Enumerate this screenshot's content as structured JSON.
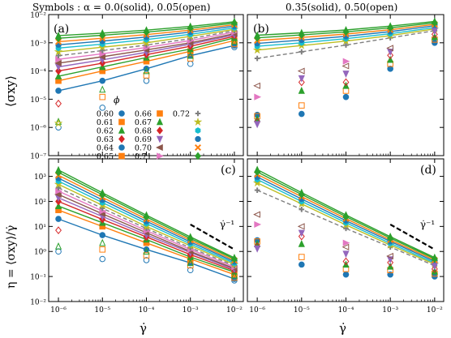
{
  "figure": {
    "header_left": "Symbols :  α = 0.0(solid), 0.05(open)",
    "header_right": "0.35(solid), 0.50(open)",
    "legend_title": "ϕ",
    "slope_label": "γ̇⁻¹"
  },
  "axes": {
    "x_ticks": [
      "10⁻⁶",
      "10⁻⁵",
      "10⁻⁴",
      "10⁻³",
      "10⁻²"
    ],
    "x_label": "γ̇",
    "top_ticks": [
      "10⁻²",
      "10⁻³",
      "10⁻⁴",
      "10⁻⁵",
      "10⁻⁶",
      "10⁻⁷"
    ],
    "top_ylabel": "⟨σxy⟩",
    "bottom_ticks": [
      "10³",
      "10²",
      "10¹",
      "10⁰",
      "10⁻¹",
      "10⁻²"
    ],
    "bottom_ylabel": "η = ⟨σxy⟩/γ̇"
  },
  "chart_data": [
    {
      "type": "line",
      "panel": "(a)",
      "x": [
        1e-06,
        1e-05,
        0.0001,
        0.001,
        0.01
      ],
      "xscale": "log",
      "yscale": "log",
      "xlim": [
        6e-07,
        0.016
      ],
      "ylim": [
        1e-07,
        0.01
      ],
      "ylabel": "⟨σxy⟩",
      "xlabel": "",
      "legend_title": "ϕ",
      "legend": [
        {
          "label": "0.60",
          "color": "#1f77b4",
          "marker": "circle"
        },
        {
          "label": "0.61",
          "color": "#ff7f0e",
          "marker": "square"
        },
        {
          "label": "0.62",
          "color": "#2ca02c",
          "marker": "triangle-up"
        },
        {
          "label": "0.63",
          "color": "#d62728",
          "marker": "diamond"
        },
        {
          "label": "0.64",
          "color": "#1f77b4",
          "marker": "circle"
        },
        {
          "label": "0.65",
          "color": "#ff7f0e",
          "marker": "square"
        },
        {
          "label": "0.66",
          "color": "#ff7f0e",
          "marker": "square"
        },
        {
          "label": "0.67",
          "color": "#2ca02c",
          "marker": "triangle-up"
        },
        {
          "label": "0.68",
          "color": "#d62728",
          "marker": "diamond"
        },
        {
          "label": "0.69",
          "color": "#9467bd",
          "marker": "triangle-down"
        },
        {
          "label": "0.70",
          "color": "#8c564b",
          "marker": "triangle-left"
        },
        {
          "label": "0.71",
          "color": "#e377c2",
          "marker": "triangle-right"
        },
        {
          "label": "0.72",
          "color": "#7f7f7f",
          "marker": "plus"
        },
        {
          "label": "",
          "color": "#bcbd22",
          "marker": "star"
        },
        {
          "label": "",
          "color": "#17becf",
          "marker": "hexagon"
        },
        {
          "label": "",
          "color": "#1f77b4",
          "marker": "octagon"
        },
        {
          "label": "",
          "color": "#ff7f0e",
          "marker": "x"
        },
        {
          "label": "",
          "color": "#2ca02c",
          "marker": "diamond"
        }
      ],
      "series": [
        {
          "color": "#1f77b4",
          "values": [
            2e-05,
            4.5e-05,
            0.00012,
            0.00035,
            0.0008
          ]
        },
        {
          "color": "#ff7f0e",
          "values": [
            4.5e-05,
            0.0001,
            0.00022,
            0.0005,
            0.0012
          ]
        },
        {
          "color": "#2ca02c",
          "values": [
            6.5e-05,
            0.00014,
            0.0003,
            0.0006,
            0.0015
          ]
        },
        {
          "color": "#d62728",
          "values": [
            0.0001,
            0.00019,
            0.00038,
            0.00075,
            0.0017
          ]
        },
        {
          "color": "#9467bd",
          "values": [
            0.00014,
            0.00025,
            0.00046,
            0.0009,
            0.0019
          ]
        },
        {
          "color": "#8c564b",
          "values": [
            0.00019,
            0.00032,
            0.00056,
            0.001,
            0.0021
          ]
        },
        {
          "color": "#e377c2",
          "values": [
            0.00026,
            0.00041,
            0.00068,
            0.0012,
            0.0024
          ]
        },
        {
          "color": "#7f7f7f",
          "values": [
            0.00035,
            0.00053,
            0.00083,
            0.0014,
            0.0027
          ],
          "dashed": true
        },
        {
          "color": "#bcbd22",
          "values": [
            0.00048,
            0.0007,
            0.001,
            0.0017,
            0.003
          ]
        },
        {
          "color": "#17becf",
          "values": [
            0.00065,
            0.0009,
            0.0013,
            0.002,
            0.0034
          ]
        },
        {
          "color": "#1f77b4",
          "values": [
            0.00085,
            0.00115,
            0.0016,
            0.0024,
            0.0039
          ]
        },
        {
          "color": "#ff7f0e",
          "values": [
            0.0011,
            0.00145,
            0.00195,
            0.0028,
            0.0044
          ]
        },
        {
          "color": "#2ca02c",
          "values": [
            0.00145,
            0.00185,
            0.0024,
            0.0033,
            0.005
          ]
        },
        {
          "color": "#2ca02c",
          "values": [
            0.0018,
            0.0022,
            0.0028,
            0.0038,
            0.0056
          ]
        }
      ],
      "open_markers": [
        {
          "color": "#1f77b4",
          "marker": "circle",
          "values": [
            1e-06,
            5e-06,
            4.5e-05,
            0.00018,
            0.0007
          ]
        },
        {
          "color": "#ff7f0e",
          "marker": "square",
          "values": [
            null,
            1.2e-05,
            7e-05,
            0.00028,
            0.0009
          ]
        },
        {
          "color": "#2ca02c",
          "marker": "triangle-up",
          "values": [
            1.6e-06,
            2.2e-05,
            0.0001,
            0.00035,
            0.0011
          ]
        },
        {
          "color": "#d62728",
          "marker": "diamond",
          "values": [
            7e-06,
            null,
            null,
            null,
            null
          ]
        },
        {
          "color": "#bcbd22",
          "marker": "star",
          "values": [
            1.4e-06,
            null,
            null,
            null,
            null
          ]
        }
      ]
    },
    {
      "type": "line",
      "panel": "(b)",
      "x": [
        1e-06,
        1e-05,
        0.0001,
        0.001,
        0.01
      ],
      "xscale": "log",
      "yscale": "log",
      "xlim": [
        6e-07,
        0.016
      ],
      "ylim": [
        1e-07,
        0.01
      ],
      "series": [
        {
          "color": "#7f7f7f",
          "values": [
            0.00028,
            0.00048,
            0.00083,
            0.0015,
            0.0027
          ],
          "dashed": true
        },
        {
          "color": "#bcbd22",
          "values": [
            0.00055,
            0.0008,
            0.00115,
            0.0018,
            0.0031
          ]
        },
        {
          "color": "#17becf",
          "values": [
            0.00075,
            0.001,
            0.0014,
            0.0021,
            0.0035
          ]
        },
        {
          "color": "#1f77b4",
          "values": [
            0.00095,
            0.00125,
            0.0017,
            0.0025,
            0.004
          ]
        },
        {
          "color": "#ff7f0e",
          "values": [
            0.0012,
            0.00155,
            0.00205,
            0.0029,
            0.0045
          ]
        },
        {
          "color": "#2ca02c",
          "values": [
            0.0015,
            0.0019,
            0.00245,
            0.0034,
            0.0051
          ]
        },
        {
          "color": "#2ca02c",
          "values": [
            0.00185,
            0.00225,
            0.00285,
            0.0039,
            0.0057
          ]
        }
      ],
      "scatter_columns": [
        {
          "x": 1e-06,
          "values": [
            2.8e-06,
            2.5e-06,
            2e-06,
            1.6e-06,
            1.3e-06,
            3e-05,
            1.2e-05
          ]
        },
        {
          "x": 1e-05,
          "values": [
            3e-06,
            6e-06,
            2e-05,
            4e-05,
            5.5e-05,
            0.0001
          ]
        },
        {
          "x": 0.0001,
          "values": [
            1.2e-05,
            2e-05,
            3e-05,
            4e-05,
            8e-05,
            0.00015,
            0.00022
          ]
        },
        {
          "x": 0.001,
          "values": [
            0.00012,
            0.00018,
            0.00025,
            0.00036,
            0.00048,
            0.00065
          ]
        },
        {
          "x": 0.01,
          "values": [
            0.001,
            0.0013,
            0.0016,
            0.002,
            0.0026
          ]
        }
      ]
    },
    {
      "type": "line",
      "panel": "(c)",
      "x": [
        1e-06,
        1e-05,
        0.0001,
        0.001,
        0.01
      ],
      "xscale": "log",
      "yscale": "log",
      "xlim": [
        6e-07,
        0.016
      ],
      "ylim": [
        0.01,
        5000.0
      ],
      "ylabel": "η = ⟨σxy⟩/γ̇",
      "xlabel": "γ̇",
      "reference_slope": {
        "label": "γ̇⁻¹",
        "exponent": -1,
        "x": [
          0.001,
          0.01
        ],
        "y": [
          12,
          1.2
        ]
      },
      "series": [
        {
          "color": "#1f77b4",
          "values": [
            20,
            4.5,
            1.2,
            0.35,
            0.08
          ]
        },
        {
          "color": "#ff7f0e",
          "values": [
            45,
            10,
            2.2,
            0.5,
            0.12
          ]
        },
        {
          "color": "#2ca02c",
          "values": [
            65,
            14,
            3.0,
            0.6,
            0.15
          ]
        },
        {
          "color": "#d62728",
          "values": [
            100,
            19,
            3.8,
            0.75,
            0.17
          ]
        },
        {
          "color": "#9467bd",
          "values": [
            140,
            25,
            4.6,
            0.9,
            0.19
          ]
        },
        {
          "color": "#8c564b",
          "values": [
            190,
            32,
            5.6,
            1.0,
            0.21
          ]
        },
        {
          "color": "#e377c2",
          "values": [
            260,
            41,
            6.8,
            1.2,
            0.24
          ]
        },
        {
          "color": "#7f7f7f",
          "values": [
            350,
            53,
            8.3,
            1.4,
            0.27
          ],
          "dashed": true
        },
        {
          "color": "#bcbd22",
          "values": [
            480,
            70,
            10,
            1.7,
            0.3
          ]
        },
        {
          "color": "#17becf",
          "values": [
            650,
            90,
            13,
            2.0,
            0.34
          ]
        },
        {
          "color": "#1f77b4",
          "values": [
            850,
            115,
            16,
            2.4,
            0.39
          ]
        },
        {
          "color": "#ff7f0e",
          "values": [
            1100,
            145,
            19.5,
            2.8,
            0.44
          ]
        },
        {
          "color": "#2ca02c",
          "values": [
            1450,
            185,
            24,
            3.3,
            0.5
          ]
        },
        {
          "color": "#2ca02c",
          "values": [
            1800,
            220,
            28,
            3.8,
            0.56
          ]
        }
      ],
      "open_markers": [
        {
          "color": "#1f77b4",
          "marker": "circle",
          "values": [
            1.0,
            0.5,
            0.45,
            0.18,
            0.07
          ]
        },
        {
          "color": "#ff7f0e",
          "marker": "square",
          "values": [
            null,
            1.2,
            0.7,
            0.28,
            0.09
          ]
        },
        {
          "color": "#2ca02c",
          "marker": "triangle-up",
          "values": [
            1.6,
            2.2,
            1.0,
            0.35,
            0.11
          ]
        },
        {
          "color": "#d62728",
          "marker": "diamond",
          "values": [
            7.0,
            null,
            null,
            null,
            null
          ]
        }
      ]
    },
    {
      "type": "line",
      "panel": "(d)",
      "x": [
        1e-06,
        1e-05,
        0.0001,
        0.001,
        0.01
      ],
      "xscale": "log",
      "yscale": "log",
      "xlim": [
        6e-07,
        0.016
      ],
      "ylim": [
        0.01,
        5000.0
      ],
      "xlabel": "γ̇",
      "reference_slope": {
        "label": "γ̇⁻¹",
        "exponent": -1,
        "x": [
          0.001,
          0.01
        ],
        "y": [
          12,
          1.2
        ]
      },
      "series": [
        {
          "color": "#7f7f7f",
          "values": [
            280,
            48,
            8.3,
            1.5,
            0.27
          ],
          "dashed": true
        },
        {
          "color": "#bcbd22",
          "values": [
            550,
            80,
            11.5,
            1.8,
            0.31
          ]
        },
        {
          "color": "#17becf",
          "values": [
            750,
            100,
            14,
            2.1,
            0.35
          ]
        },
        {
          "color": "#1f77b4",
          "values": [
            950,
            125,
            17,
            2.5,
            0.4
          ]
        },
        {
          "color": "#ff7f0e",
          "values": [
            1200,
            155,
            20.5,
            2.9,
            0.45
          ]
        },
        {
          "color": "#2ca02c",
          "values": [
            1500,
            190,
            24.5,
            3.4,
            0.51
          ]
        },
        {
          "color": "#2ca02c",
          "values": [
            1850,
            225,
            28.5,
            3.9,
            0.57
          ]
        }
      ],
      "scatter_columns": [
        {
          "x": 1e-06,
          "values": [
            2.8,
            2.5,
            2.0,
            1.6,
            1.3,
            30,
            12
          ]
        },
        {
          "x": 1e-05,
          "values": [
            0.3,
            0.6,
            2.0,
            4.0,
            5.5,
            10
          ]
        },
        {
          "x": 0.0001,
          "values": [
            0.12,
            0.2,
            0.3,
            0.4,
            0.8,
            1.5,
            2.2
          ]
        },
        {
          "x": 0.001,
          "values": [
            0.12,
            0.18,
            0.25,
            0.36,
            0.48,
            0.65
          ]
        },
        {
          "x": 0.01,
          "values": [
            0.1,
            0.13,
            0.16,
            0.2,
            0.26
          ]
        }
      ]
    }
  ]
}
